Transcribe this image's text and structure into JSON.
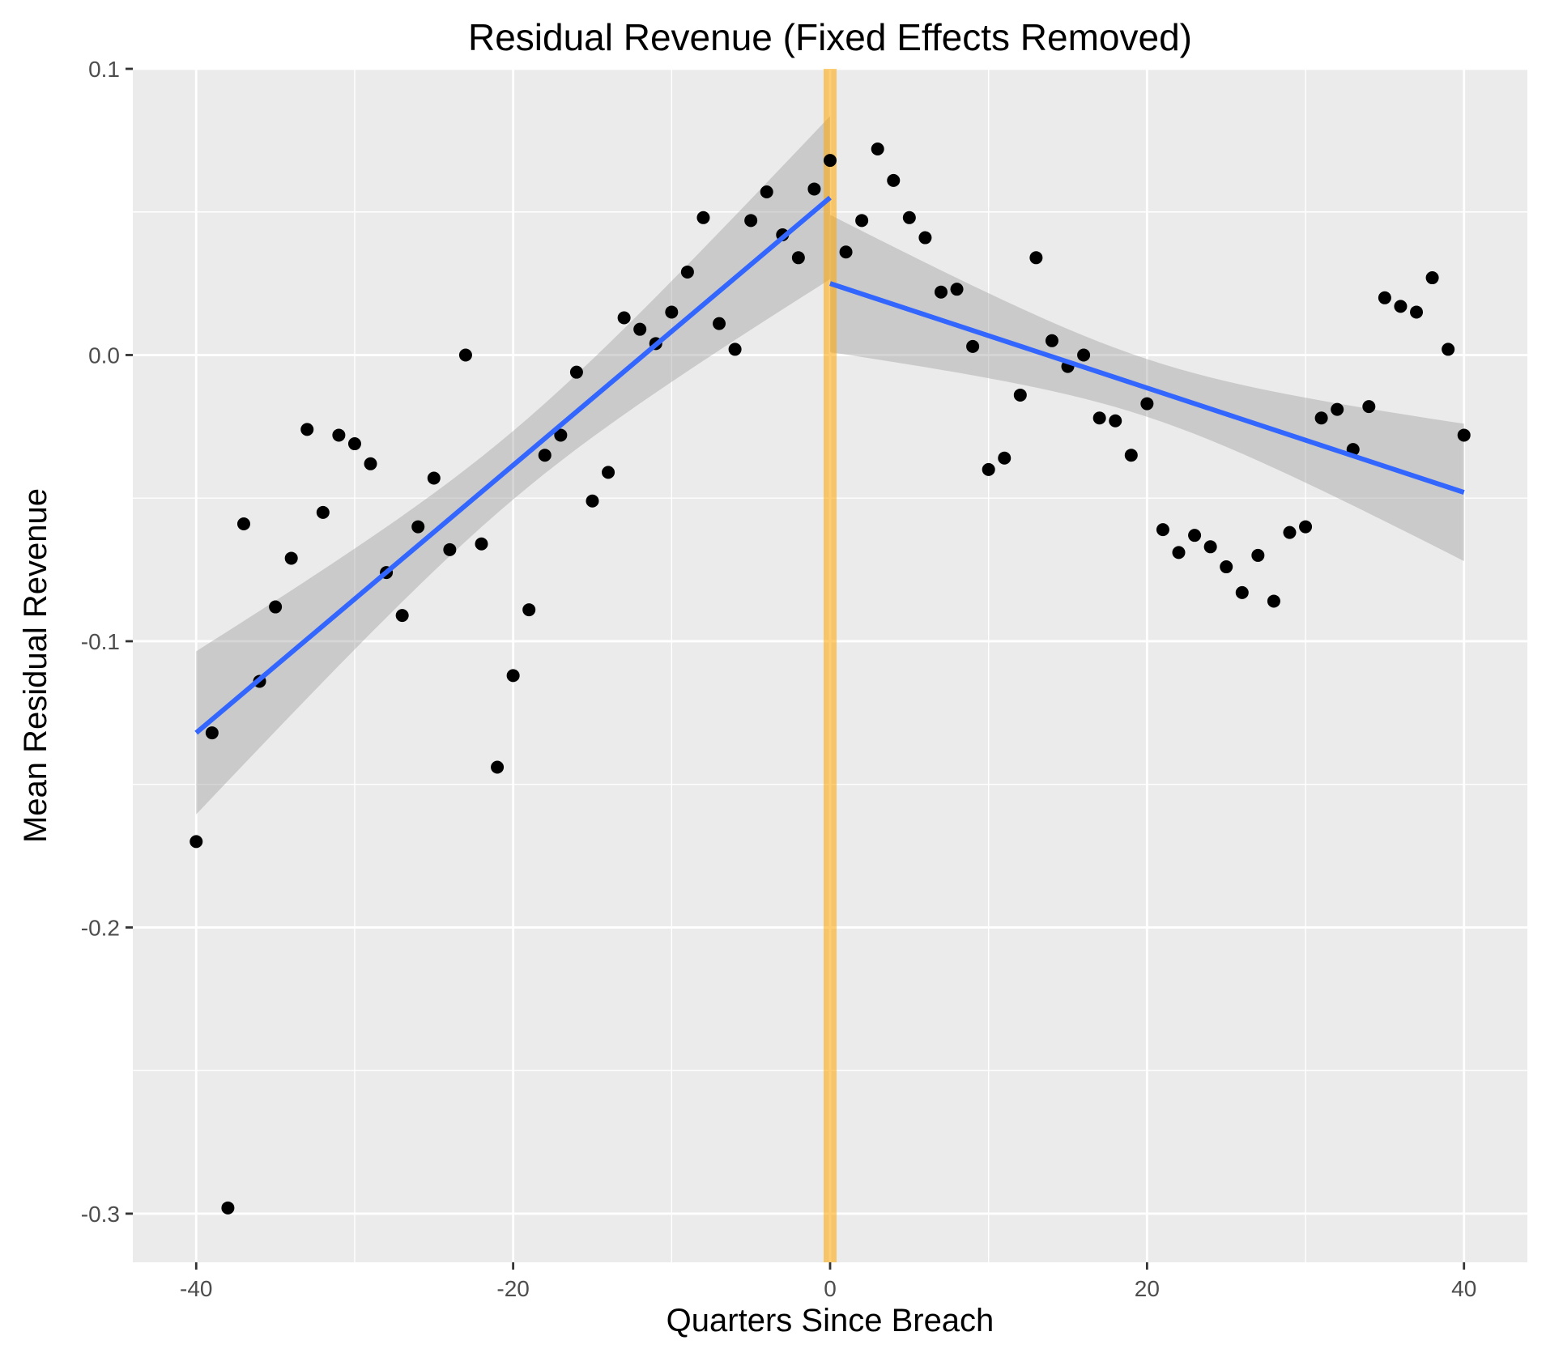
{
  "chart_data": {
    "type": "scatter",
    "title": "Residual Revenue (Fixed Effects Removed)",
    "xlabel": "Quarters Since Breach",
    "ylabel": "Mean Residual Revenue",
    "xlim": [
      -44,
      44
    ],
    "ylim": [
      -0.317,
      0.1
    ],
    "x_ticks": [
      -40,
      -20,
      0,
      20,
      40
    ],
    "x_tick_labels": [
      "-40",
      "-20",
      "0",
      "20",
      "40"
    ],
    "y_ticks": [
      0.1,
      0.0,
      -0.1,
      -0.2,
      -0.3
    ],
    "y_tick_labels": [
      "0.1",
      "0.0",
      "-0.1",
      "-0.2",
      "-0.3"
    ],
    "grid": true,
    "points": {
      "x": [
        -40,
        -39,
        -38,
        -37,
        -36,
        -35,
        -34,
        -33,
        -32,
        -31,
        -30,
        -29,
        -28,
        -27,
        -26,
        -25,
        -24,
        -23,
        -22,
        -21,
        -20,
        -19,
        -18,
        -17,
        -16,
        -15,
        -14,
        -13,
        -12,
        -11,
        -10,
        -9,
        -8,
        -7,
        -6,
        -5,
        -4,
        -3,
        -2,
        -1,
        0,
        1,
        2,
        3,
        4,
        5,
        6,
        7,
        8,
        9,
        10,
        11,
        12,
        13,
        14,
        15,
        16,
        17,
        18,
        19,
        20,
        21,
        22,
        23,
        24,
        25,
        26,
        27,
        28,
        29,
        30,
        31,
        32,
        33,
        34,
        35,
        36,
        37,
        38,
        39,
        40
      ],
      "y": [
        -0.17,
        -0.132,
        -0.298,
        -0.059,
        -0.114,
        -0.088,
        -0.071,
        -0.026,
        -0.055,
        -0.028,
        -0.031,
        -0.038,
        -0.076,
        -0.091,
        -0.06,
        -0.043,
        -0.068,
        0.0,
        -0.066,
        -0.144,
        -0.112,
        -0.089,
        -0.035,
        -0.028,
        -0.006,
        -0.051,
        -0.041,
        0.013,
        0.009,
        0.004,
        0.015,
        0.029,
        0.048,
        0.011,
        0.002,
        0.047,
        0.057,
        0.042,
        0.034,
        0.058,
        0.068,
        0.036,
        0.047,
        0.072,
        0.061,
        0.048,
        0.041,
        0.022,
        0.023,
        0.003,
        -0.04,
        -0.036,
        -0.014,
        0.034,
        0.005,
        -0.004,
        0.0,
        -0.022,
        -0.023,
        -0.035,
        -0.017,
        -0.061,
        -0.069,
        -0.063,
        -0.067,
        -0.074,
        -0.083,
        -0.07,
        -0.086,
        -0.062,
        -0.06,
        -0.022,
        -0.019,
        -0.033,
        -0.018,
        0.02,
        0.017,
        0.015,
        0.027,
        0.002,
        -0.028
      ]
    },
    "series": [
      {
        "segment": "pre-breach",
        "x": [
          -40,
          0
        ],
        "y": [
          -0.132,
          0.055
        ],
        "ci_lower": [
          -0.16,
          0.025
        ],
        "ci_upper": [
          -0.103,
          0.082
        ]
      },
      {
        "segment": "post-breach",
        "x": [
          0,
          40
        ],
        "y": [
          0.025,
          -0.048
        ],
        "ci_lower": [
          0.001,
          -0.072
        ],
        "ci_upper": [
          0.049,
          -0.024
        ]
      }
    ],
    "threshold_line": {
      "x": 0
    },
    "colors": {
      "panel_bg": "#ebebeb",
      "grid": "#ffffff",
      "points": "#000000",
      "fit_line": "#3366ff",
      "ci_ribbon": "#999999",
      "threshold": "#ffa500"
    }
  }
}
